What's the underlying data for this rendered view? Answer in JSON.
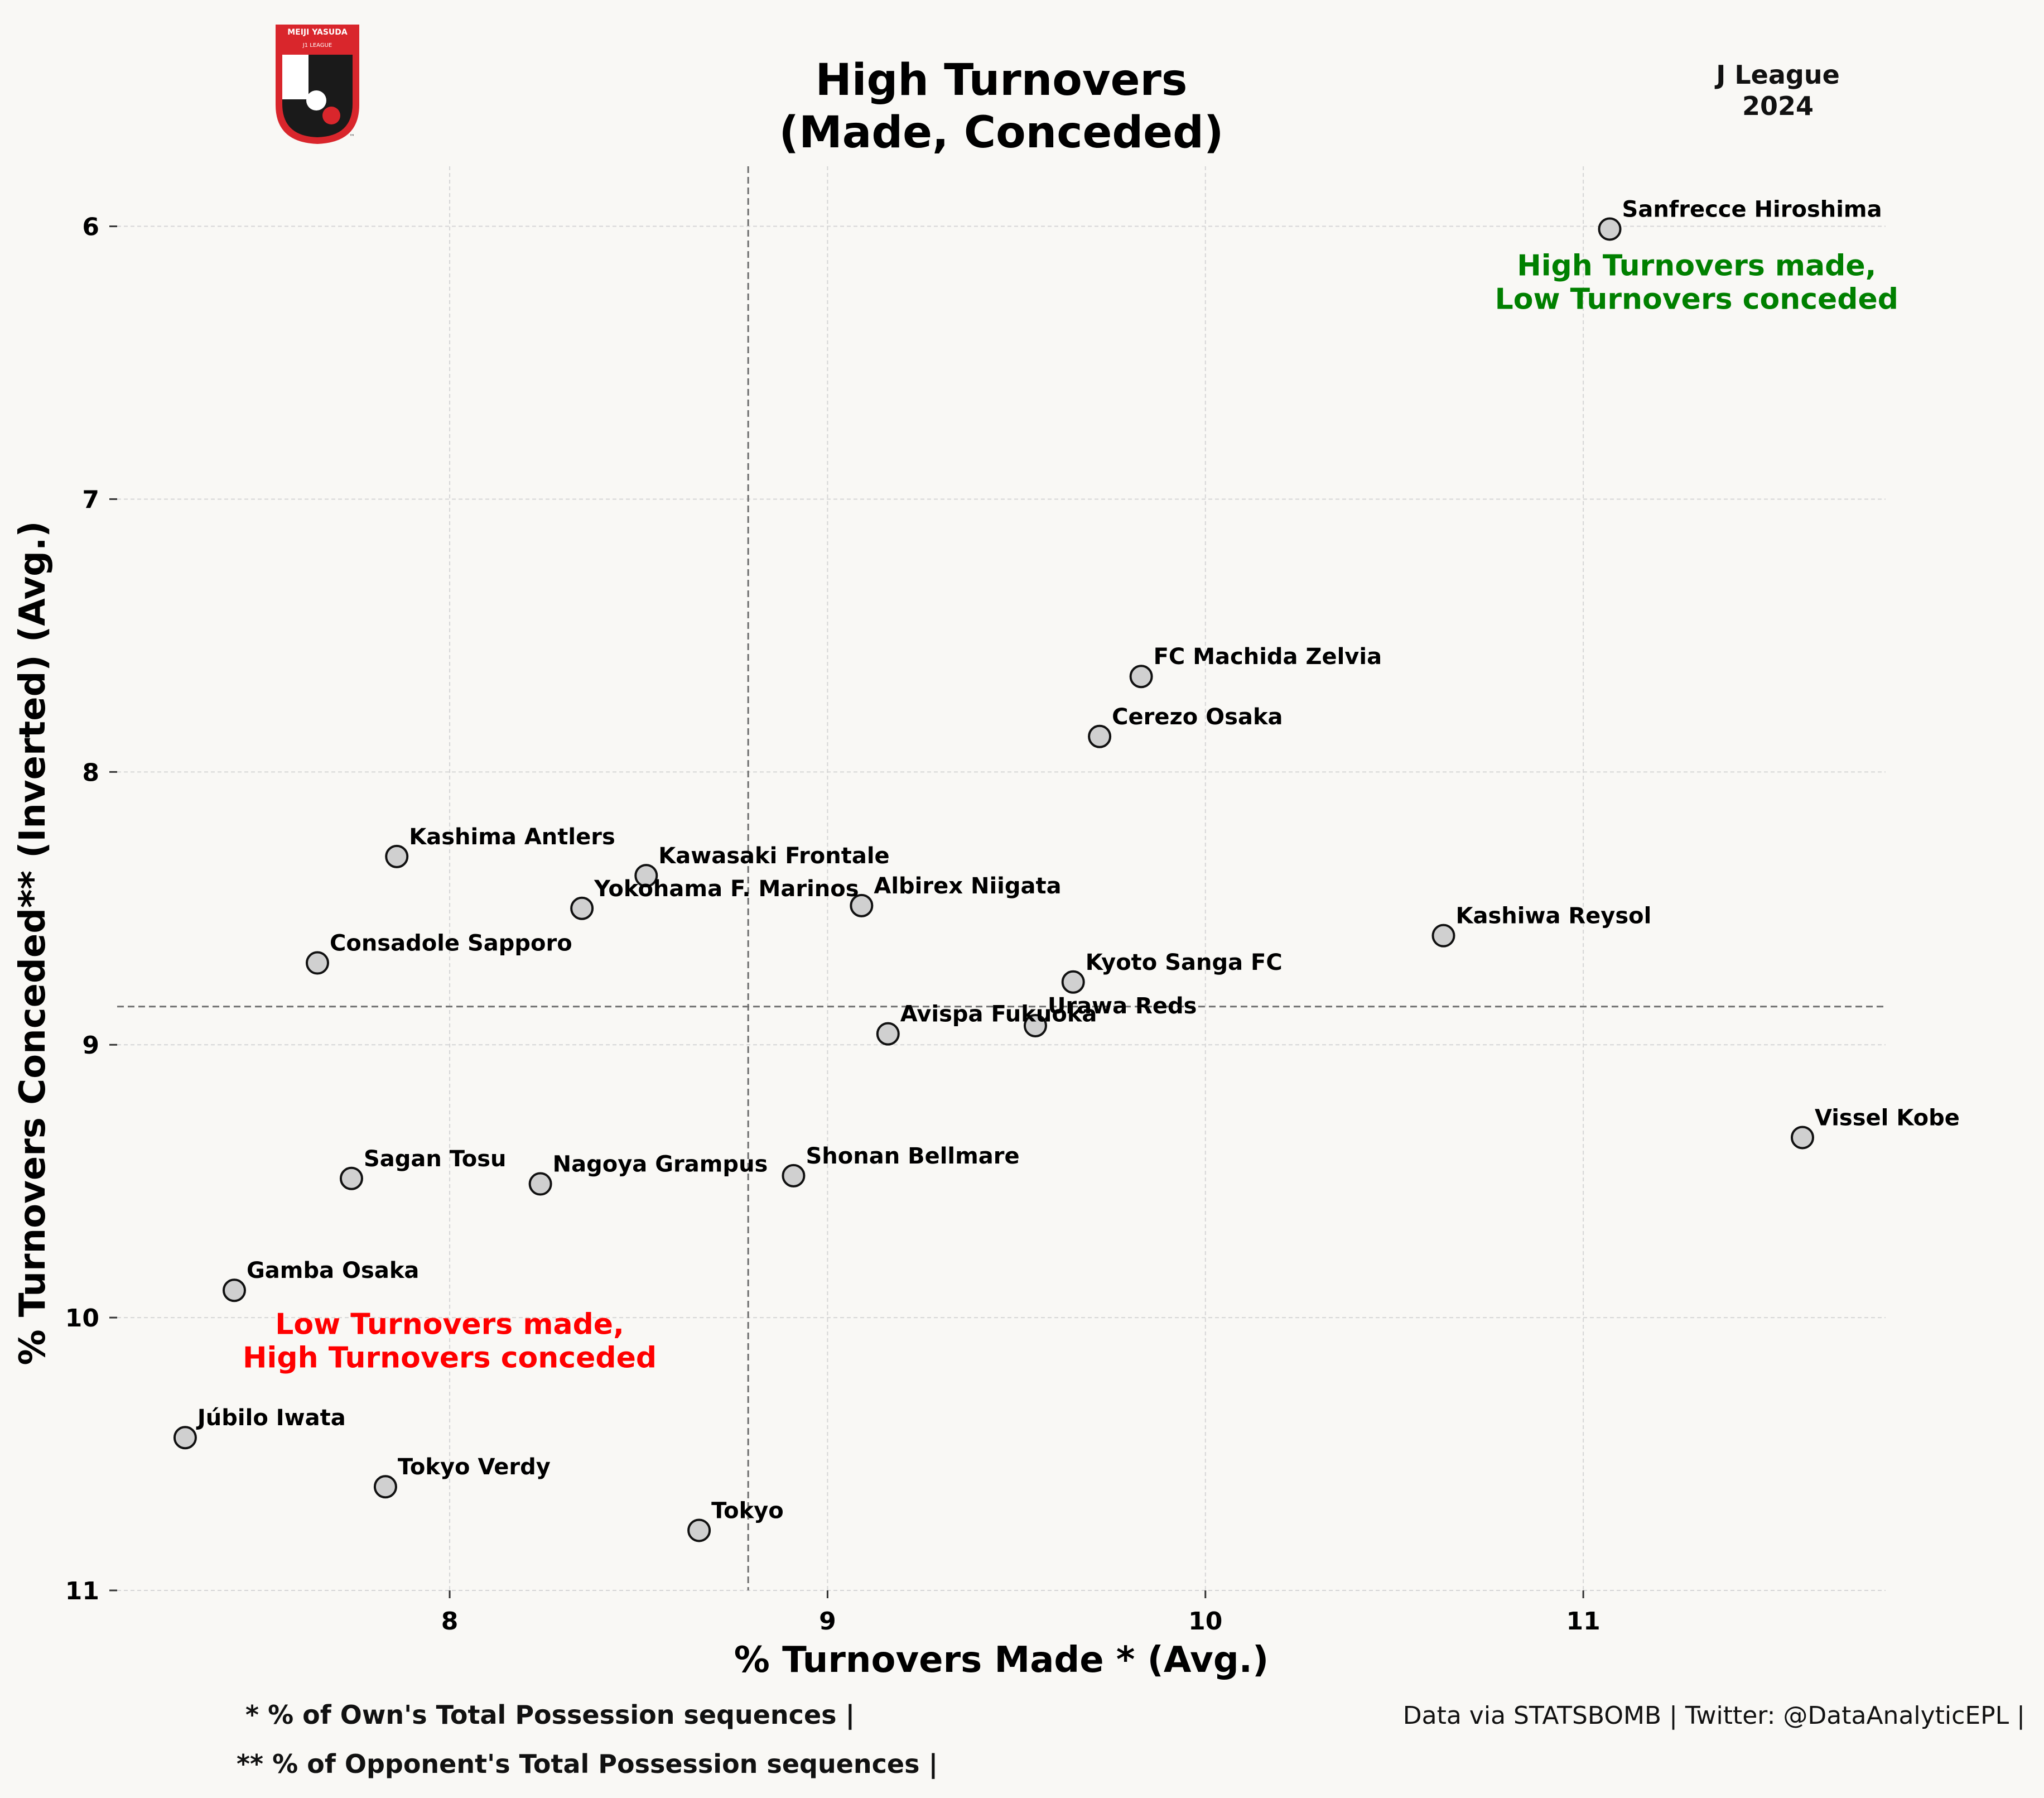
{
  "header": {
    "title_line1": "High Turnovers",
    "title_line2": "(Made, Conceded)",
    "corner_line1": "J League",
    "corner_line2": "2024"
  },
  "logo": {
    "top_text": "MEIJI YASUDA",
    "sub_text": "J1 LEAGUE",
    "trademark": "™",
    "colors": {
      "red": "#d9262c",
      "black": "#1a1a1a",
      "white": "#ffffff"
    }
  },
  "chart_data": {
    "type": "scatter",
    "title": "High Turnovers (Made, Conceded)",
    "xlabel": "% Turnovers Made * (Avg.)",
    "ylabel": "% Turnovers Conceded** (Inverted) (Avg.)",
    "xlim": [
      7.12,
      11.8
    ],
    "ylim": [
      5.78,
      11.0
    ],
    "y_inverted": true,
    "xticks": [
      8,
      9,
      10,
      11
    ],
    "yticks": [
      6,
      7,
      8,
      9,
      10,
      11
    ],
    "grid": true,
    "reference_lines": {
      "x": 8.79,
      "y": 8.86
    },
    "marker_color": "#d0d0d0",
    "points": [
      {
        "team": "Sanfrecce Hiroshima",
        "x": 11.07,
        "y": 6.01
      },
      {
        "team": "FC Machida Zelvia",
        "x": 9.83,
        "y": 7.65
      },
      {
        "team": "Cerezo Osaka",
        "x": 9.72,
        "y": 7.87
      },
      {
        "team": "Kashima Antlers",
        "x": 7.86,
        "y": 8.31
      },
      {
        "team": "Kawasaki Frontale",
        "x": 8.52,
        "y": 8.38
      },
      {
        "team": "Yokohama F. Marinos",
        "x": 8.35,
        "y": 8.5
      },
      {
        "team": "Albirex Niigata",
        "x": 9.09,
        "y": 8.49
      },
      {
        "team": "Kashiwa Reysol",
        "x": 10.63,
        "y": 8.6
      },
      {
        "team": "Consadole Sapporo",
        "x": 7.65,
        "y": 8.7
      },
      {
        "team": "Kyoto Sanga FC",
        "x": 9.65,
        "y": 8.77
      },
      {
        "team": "Urawa Reds",
        "x": 9.55,
        "y": 8.93
      },
      {
        "team": "Avispa Fukuoka",
        "x": 9.16,
        "y": 8.96
      },
      {
        "team": "Vissel Kobe",
        "x": 11.58,
        "y": 9.34
      },
      {
        "team": "Sagan Tosu",
        "x": 7.74,
        "y": 9.49
      },
      {
        "team": "Nagoya Grampus",
        "x": 8.24,
        "y": 9.51
      },
      {
        "team": "Shonan Bellmare",
        "x": 8.91,
        "y": 9.48
      },
      {
        "team": "Gamba Osaka",
        "x": 7.43,
        "y": 9.9
      },
      {
        "team": "Júbilo Iwata",
        "x": 7.3,
        "y": 10.44
      },
      {
        "team": "Tokyo Verdy",
        "x": 7.83,
        "y": 10.62
      },
      {
        "team": "Tokyo",
        "x": 8.66,
        "y": 10.78
      }
    ],
    "annotations": [
      {
        "text_line1": "High Turnovers made,",
        "text_line2": "Low Turnovers conceded",
        "color": "#008000",
        "x": 11.3,
        "y": 6.18
      },
      {
        "text_line1": "Low Turnovers made,",
        "text_line2": "High Turnovers conceded",
        "color": "#ff0000",
        "x": 8.0,
        "y": 10.06
      }
    ]
  },
  "footer": {
    "note1": "* % of Own's Total Possession sequences |",
    "note2": "** % of Opponent's Total Possession sequences |",
    "credit": "Data via STATSBOMB | Twitter: @DataAnalyticEPL |"
  }
}
